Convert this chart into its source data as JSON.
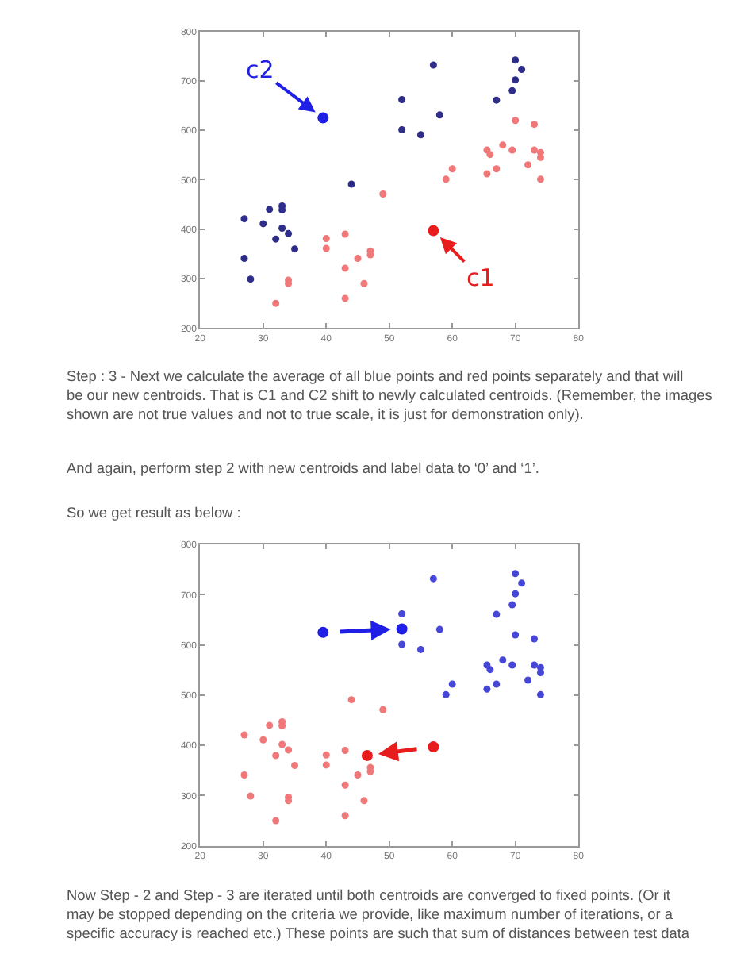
{
  "chart_data": [
    {
      "type": "scatter",
      "marker": "circle",
      "grid": false,
      "xlim": [
        20,
        80
      ],
      "xticks": [
        20,
        30,
        40,
        50,
        60,
        70,
        80
      ],
      "ylim": [
        200,
        800
      ],
      "yticks": [
        200,
        300,
        400,
        500,
        600,
        700,
        800
      ],
      "series": [
        {
          "color": "#2e2e8a",
          "x": [
            27,
            27,
            28,
            30,
            31,
            33,
            33,
            32,
            33,
            34,
            35,
            44,
            52,
            52,
            55,
            57,
            58,
            67,
            69.5,
            70,
            70,
            71
          ],
          "values": [
            421,
            341,
            299,
            411,
            440,
            447,
            439,
            380,
            402,
            391,
            360,
            491,
            662,
            601,
            591,
            732,
            631,
            661,
            680,
            702,
            742,
            723
          ]
        },
        {
          "color": "#f07878",
          "x": [
            32,
            34,
            34,
            40,
            40,
            43,
            43,
            43,
            45,
            46,
            47,
            47,
            49,
            59,
            60,
            65.5,
            65.5,
            66,
            67,
            68,
            69.5,
            70,
            72,
            73,
            73,
            74,
            74,
            74
          ],
          "values": [
            250,
            297,
            290,
            381,
            361,
            390,
            321,
            260,
            341,
            290,
            356,
            348,
            471,
            501,
            522,
            512,
            560,
            551,
            522,
            570,
            560,
            620,
            530,
            612,
            560,
            555,
            545,
            501
          ]
        },
        {
          "color": "#1f1fe6",
          "x": [
            39.5
          ],
          "values": [
            625
          ]
        },
        {
          "color": "#e81c1c",
          "x": [
            57
          ],
          "values": [
            397
          ]
        }
      ],
      "annotations": [
        {
          "text": "c2",
          "x": 39.5,
          "y": 625
        },
        {
          "text": "c1",
          "x": 57,
          "y": 397
        },
        "Step : 3 - Next we calculate the average of all blue points and red points separately and that will be our new centroids. That is C1 and C2 shift to newly calculated centroids. (Remember, the images shown are not true values and not to true scale, it is just for demonstration only).",
        "And again, perform step 2 with new centroids and label data to ‘0’ and ‘1’.",
        "So we get result as below :"
      ]
    },
    {
      "type": "scatter",
      "marker": "circle",
      "grid": false,
      "xlim": [
        20,
        80
      ],
      "xticks": [
        20,
        30,
        40,
        50,
        60,
        70,
        80
      ],
      "ylim": [
        200,
        800
      ],
      "yticks": [
        200,
        300,
        400,
        500,
        600,
        700,
        800
      ],
      "series": [
        {
          "color": "#f07878",
          "x": [
            27,
            27,
            28,
            30,
            31,
            33,
            33,
            32,
            33,
            34,
            35,
            44,
            32,
            34,
            34,
            40,
            40,
            43,
            43,
            43,
            45,
            46,
            47,
            47,
            49
          ],
          "values": [
            421,
            341,
            299,
            411,
            440,
            447,
            439,
            380,
            402,
            391,
            360,
            491,
            250,
            297,
            290,
            381,
            361,
            390,
            321,
            260,
            341,
            290,
            356,
            348,
            471
          ]
        },
        {
          "color": "#4646d8",
          "x": [
            52,
            52,
            55,
            57,
            58,
            67,
            69.5,
            70,
            70,
            71,
            59,
            60,
            65.5,
            65.5,
            66,
            67,
            68,
            69.5,
            70,
            72,
            73,
            73,
            74,
            74,
            74
          ],
          "values": [
            662,
            601,
            591,
            732,
            631,
            661,
            680,
            702,
            742,
            723,
            501,
            522,
            512,
            560,
            551,
            522,
            570,
            560,
            620,
            530,
            612,
            560,
            555,
            545,
            501
          ]
        },
        {
          "color": "#1f1fe6",
          "x": [
            39.5,
            52
          ],
          "values": [
            625,
            632
          ]
        },
        {
          "color": "#e81c1c",
          "x": [
            57,
            46.5
          ],
          "values": [
            397,
            380
          ]
        }
      ],
      "annotations": [
        "Now Step - 2 and Step - 3 are iterated until both centroids are converged to fixed points. (Or it may be stopped depending on the criteria we provide, like maximum number of iterations, or a specific accuracy is reached etc.) These points are such that sum of distances between test data"
      ]
    }
  ]
}
